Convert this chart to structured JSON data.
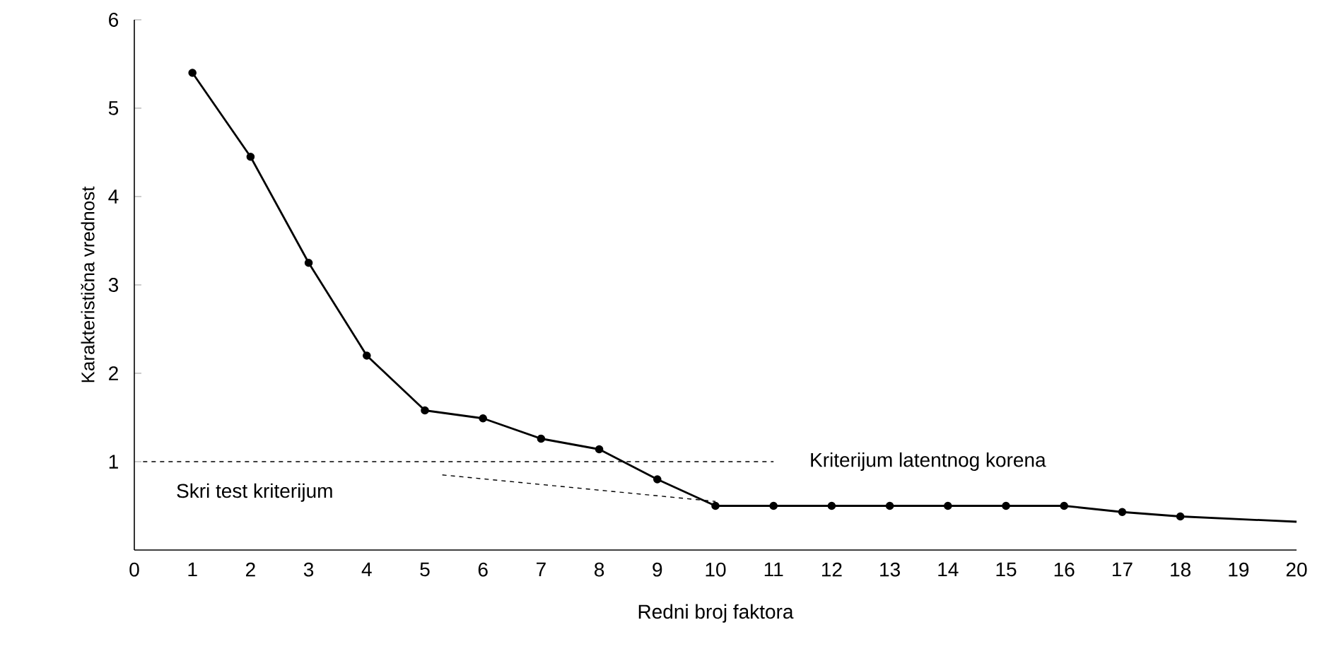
{
  "chart_data": {
    "type": "line",
    "xlabel": "Redni broj faktora",
    "ylabel": "Karakteristična vrednost",
    "series": [
      {
        "color": "#000000",
        "marker": "circle",
        "line_style": "solid",
        "x": [
          1,
          2,
          3,
          4,
          5,
          6,
          7,
          8,
          9,
          10,
          11,
          12,
          13,
          14,
          15,
          16,
          17,
          18
        ],
        "values": [
          5.4,
          4.45,
          3.25,
          2.2,
          1.58,
          1.49,
          1.26,
          1.14,
          0.8,
          0.5,
          0.5,
          0.5,
          0.5,
          0.5,
          0.5,
          0.5,
          0.43,
          0.38
        ]
      },
      {
        "color": "#000000",
        "marker": "none",
        "line_style": "solid",
        "x": [
          18,
          20
        ],
        "values": [
          0.38,
          0.32
        ]
      },
      {
        "color": "#000000",
        "marker": "none",
        "line_style": "dashed",
        "x": [
          5.3,
          10
        ],
        "values": [
          0.85,
          0.55
        ]
      }
    ],
    "ref_lines": [
      {
        "axis": "y",
        "value": 1,
        "label": "Kriterijum latentnog korena",
        "line_style": "dashed",
        "color": "#000000"
      }
    ],
    "annotations": [
      "Skri test kriterijum"
    ],
    "xlim": [
      0,
      20
    ],
    "ylim": [
      0,
      6
    ],
    "xticks": [
      0,
      1,
      2,
      3,
      4,
      5,
      6,
      7,
      8,
      9,
      10,
      11,
      12,
      13,
      14,
      15,
      16,
      17,
      18,
      19,
      20
    ],
    "yticks": [
      1,
      2,
      3,
      4,
      5,
      6
    ]
  }
}
